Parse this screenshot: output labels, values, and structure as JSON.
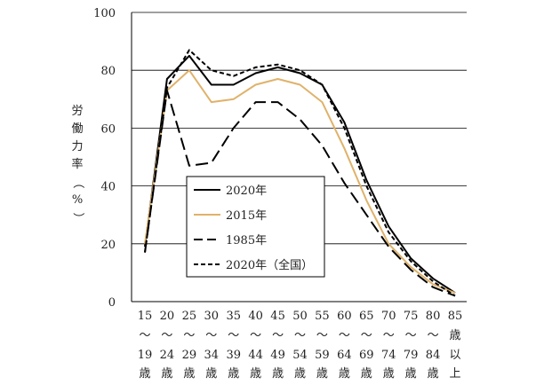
{
  "chart_data": {
    "type": "line",
    "ylabel": "労働力率（%）",
    "ylim": [
      0,
      100
    ],
    "yticks": [
      0,
      20,
      40,
      60,
      80,
      100
    ],
    "grid": true,
    "legend_position": "inside-left",
    "categories": [
      [
        "15",
        "〜",
        "19",
        "歳"
      ],
      [
        "20",
        "〜",
        "24",
        "歳"
      ],
      [
        "25",
        "〜",
        "29",
        "歳"
      ],
      [
        "30",
        "〜",
        "34",
        "歳"
      ],
      [
        "35",
        "〜",
        "39",
        "歳"
      ],
      [
        "40",
        "〜",
        "44",
        "歳"
      ],
      [
        "45",
        "〜",
        "49",
        "歳"
      ],
      [
        "50",
        "〜",
        "54",
        "歳"
      ],
      [
        "55",
        "〜",
        "59",
        "歳"
      ],
      [
        "60",
        "〜",
        "64",
        "歳"
      ],
      [
        "65",
        "〜",
        "69",
        "歳"
      ],
      [
        "70",
        "〜",
        "74",
        "歳"
      ],
      [
        "75",
        "〜",
        "79",
        "歳"
      ],
      [
        "80",
        "〜",
        "84",
        "歳"
      ],
      [
        "85",
        "歳",
        "以",
        "上"
      ]
    ],
    "series": [
      {
        "name": "2020年",
        "color": "#000000",
        "style": "solid",
        "values": [
          19,
          77,
          85,
          75,
          75,
          79,
          81,
          79,
          75,
          62,
          42,
          26,
          15,
          8,
          3
        ]
      },
      {
        "name": "2015年",
        "color": "#e0b26a",
        "style": "solid",
        "values": [
          20,
          73,
          80,
          69,
          70,
          75,
          77,
          75,
          69,
          53,
          35,
          20,
          12,
          6,
          3
        ]
      },
      {
        "name": "1985年",
        "color": "#000000",
        "style": "longdash",
        "values": [
          17,
          73,
          47,
          48,
          60,
          69,
          69,
          63,
          54,
          41,
          30,
          19,
          11,
          5,
          2
        ]
      },
      {
        "name": "2020年（全国）",
        "color": "#000000",
        "style": "shortdash",
        "values": [
          17,
          74,
          87,
          80,
          78,
          81,
          82,
          80,
          75,
          60,
          40,
          24,
          14,
          7,
          2
        ]
      }
    ]
  }
}
